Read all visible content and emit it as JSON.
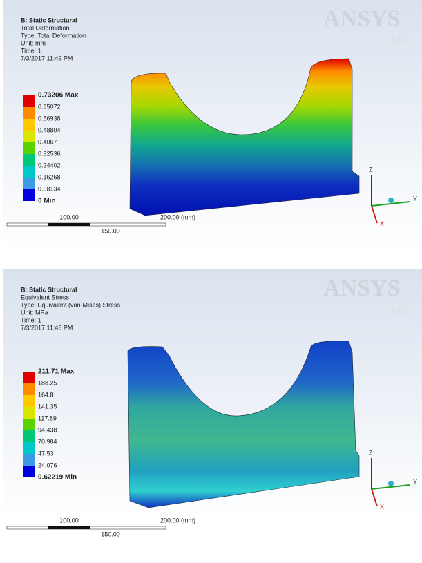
{
  "panels": [
    {
      "analysis": "B: Static Structural",
      "result": "Total Deformation",
      "type": "Type: Total Deformation",
      "unit": "Unit: mm",
      "time": "Time: 1",
      "date": "7/3/2017 11:49 PM",
      "legend": [
        "0.73206 Max",
        "0.65072",
        "0.56938",
        "0.48804",
        "0.4067",
        "0.32536",
        "0.24402",
        "0.16268",
        "0.08134",
        "0 Min"
      ],
      "scale": {
        "left": "100.00",
        "right": "200.00 (mm)",
        "middle": "150.00"
      },
      "logo": "ANSYS",
      "version": "14.0",
      "triad": {
        "z": "Z",
        "y": "Y",
        "x": "X"
      }
    },
    {
      "analysis": "B: Static Structural",
      "result": "Equivalent Stress",
      "type": "Type: Equivalent (von-Mises) Stress",
      "unit": "Unit: MPa",
      "time": "Time: 1",
      "date": "7/3/2017 11:46 PM",
      "legend": [
        "211.71 Max",
        "188.25",
        "164.8",
        "141.35",
        "117.89",
        "94.438",
        "70.984",
        "47.53",
        "24.076",
        "0.62219 Min"
      ],
      "scale": {
        "left": "100.00",
        "right": "200.00 (mm)",
        "middle": "150.00"
      },
      "logo": "ANSYS",
      "version": "14.0",
      "triad": {
        "z": "Z",
        "y": "Y",
        "x": "X"
      }
    }
  ]
}
